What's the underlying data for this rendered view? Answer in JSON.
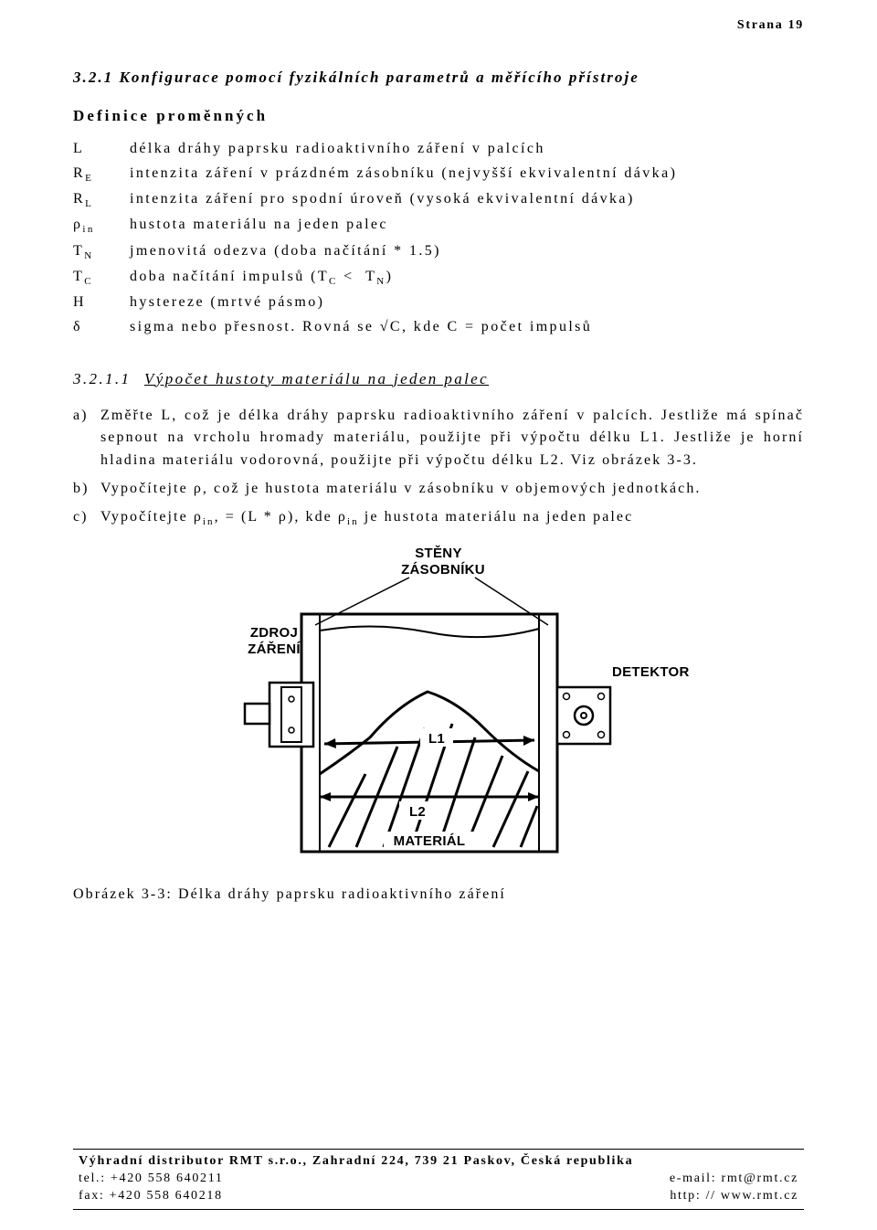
{
  "page_header": "Strana 19",
  "section": {
    "number": "3.2.1",
    "title": "Konfigurace pomocí fyzikálních parametrů a měřícího přístroje"
  },
  "definitions_heading": "Definice proměnných",
  "definitions": [
    {
      "sym": "L",
      "sub": "",
      "desc": "délka dráhy paprsku radioaktivního záření v palcích"
    },
    {
      "sym": "R",
      "sub": "E",
      "desc": "intenzita záření v prázdném zásobníku (nejvyšší ekvivalentní dávka)"
    },
    {
      "sym": "R",
      "sub": "L",
      "desc": "intenzita záření pro spodní úroveň (vysoká ekvivalentní dávka)"
    },
    {
      "sym": "ρ",
      "sub": "in",
      "desc": "hustota materiálu na jeden palec"
    },
    {
      "sym": "T",
      "sub": "N",
      "desc": "jmenovitá odezva (doba načítání * 1.5)"
    },
    {
      "sym": "T",
      "sub": "C",
      "desc": "doba načítání impulsů (T_C <  T_N)"
    },
    {
      "sym": "H",
      "sub": "",
      "desc": "hystereze (mrtvé pásmo)"
    },
    {
      "sym": "δ",
      "sub": "",
      "desc": "sigma nebo přesnost. Rovná se √C, kde C = počet impulsů"
    }
  ],
  "subsection": {
    "number": "3.2.1.1",
    "title": "Výpočet hustoty materiálu na jeden palec"
  },
  "list": [
    {
      "marker": "a)",
      "text": "Změřte L, což je délka dráhy paprsku radioaktivního záření v palcích. Jestliže má spínač sepnout na vrcholu hromady materiálu, použijte při výpočtu délku L1. Jestliže je horní hladina materiálu vodorovná, použijte při výpočtu délku L2. Viz obrázek 3-3."
    },
    {
      "marker": "b)",
      "text": "Vypočítejte ρ, což je hustota materiálu v zásobníku v objemových jednotkách."
    },
    {
      "marker": "c)",
      "text": "Vypočítejte ρin, = (L * ρ), kde ρin je hustota materiálu na jeden palec"
    }
  ],
  "diagram": {
    "labels": {
      "walls": "STĚNY\nZÁSOBNÍKU",
      "source": "ZDROJ\nZÁŘENÍ",
      "detector": "DETEKTOR",
      "L1": "L1",
      "L2": "L2",
      "material": "MATERIÁL"
    },
    "stroke": "#000000",
    "fill": "#ffffff"
  },
  "figure_caption": "Obrázek 3-3: Délka dráhy paprsku radioaktivního záření",
  "footer": {
    "line1_left": "Výhradní distributor RMT s.r.o., Zahradní 224, 739 21 Paskov, Česká republika",
    "line2_left": "tel.: +420 558 640211",
    "line2_right": "e-mail: rmt@rmt.cz",
    "line3_left": "fax: +420 558 640218",
    "line3_right": "http: // www.rmt.cz"
  }
}
